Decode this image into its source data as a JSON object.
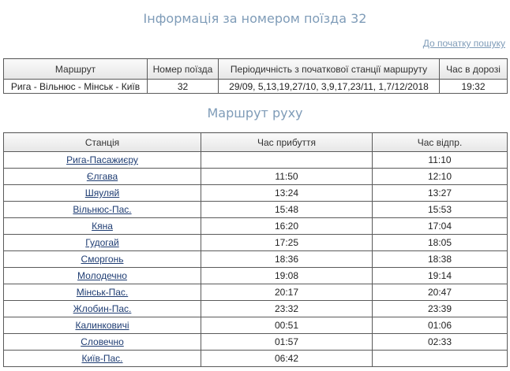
{
  "header": {
    "title": "Інформація за номером поїзда 32",
    "back_link": "До початку пошуку"
  },
  "info_table": {
    "columns": [
      "Маршрут",
      "Номер поїзда",
      "Періодичність з початкової станції маршруту",
      "Час в дорозі"
    ],
    "row": [
      "Рига - Вільнюс - Мінськ - Київ",
      "32",
      "29/09, 5,13,19,27/10, 3,9,17,23/11, 1,7/12/2018",
      "19:32"
    ]
  },
  "route": {
    "title": "Маршрут руху",
    "columns": [
      "Станція",
      "Час прибуття",
      "Час відпр."
    ],
    "rows": [
      [
        "Рига-Пасажиєру",
        null,
        "11:10"
      ],
      [
        "Єлгава",
        "11:50",
        "12:10"
      ],
      [
        "Шяуляй",
        "13:24",
        "13:27"
      ],
      [
        "Вільнюс-Пас.",
        "15:48",
        "15:53"
      ],
      [
        "Кяна",
        "16:20",
        "17:04"
      ],
      [
        "Гудогай",
        "17:25",
        "18:05"
      ],
      [
        "Сморгонь",
        "18:36",
        "18:38"
      ],
      [
        "Молодечно",
        "19:08",
        "19:14"
      ],
      [
        "Мінськ-Пас.",
        "20:17",
        "20:47"
      ],
      [
        "Жлобин-Пас.",
        "23:32",
        "23:39"
      ],
      [
        "Калинковичі",
        "00:51",
        "01:06"
      ],
      [
        "Словечно",
        "01:57",
        "02:33"
      ],
      [
        "Київ-Пас.",
        "06:42",
        null
      ]
    ]
  }
}
